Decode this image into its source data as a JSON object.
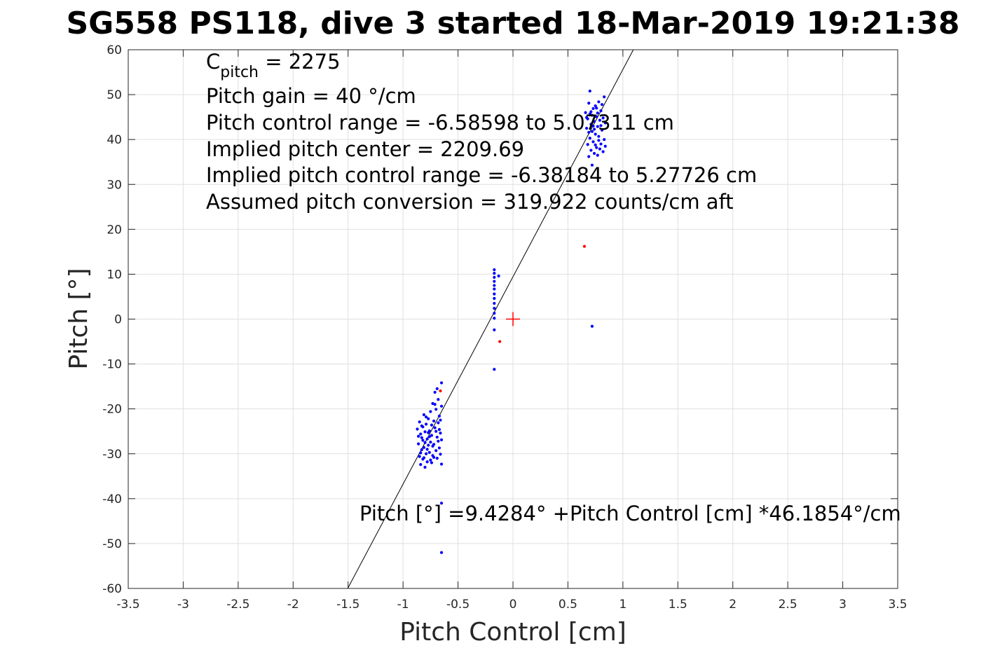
{
  "chart_data": {
    "type": "scatter",
    "title": "SG558 PS118, dive 3 started 18-Mar-2019 19:21:38",
    "xlabel": "Pitch Control [cm]",
    "ylabel": "Pitch [°]",
    "xlim": [
      -3.5,
      3.5
    ],
    "ylim": [
      -60,
      60
    ],
    "grid": true,
    "xticks": [
      -3.5,
      -3,
      -2.5,
      -2,
      -1.5,
      -1,
      -0.5,
      0,
      0.5,
      1,
      1.5,
      2,
      2.5,
      3,
      3.5
    ],
    "yticks": [
      -60,
      -50,
      -40,
      -30,
      -20,
      -10,
      0,
      10,
      20,
      30,
      40,
      50,
      60
    ],
    "xtick_labels": [
      "-3.5",
      "-3",
      "-2.5",
      "-2",
      "-1.5",
      "-1",
      "-0.5",
      "0",
      "0.5",
      "1",
      "1.5",
      "2",
      "2.5",
      "3",
      "3.5"
    ],
    "ytick_labels": [
      "-60",
      "-50",
      "-40",
      "-30",
      "-20",
      "-10",
      "0",
      "10",
      "20",
      "30",
      "40",
      "50",
      "60"
    ],
    "fit_line": {
      "intercept": 9.4284,
      "slope": 46.1854,
      "color": "#000000"
    },
    "center_marker": {
      "x": 0,
      "y": 0,
      "color": "#ff0000"
    },
    "series": [
      {
        "color": "#0000ff",
        "points": [
          [
            -0.87,
            -24.5
          ],
          [
            -0.86,
            -27.8
          ],
          [
            -0.85,
            -30.6
          ],
          [
            -0.85,
            -22.9
          ],
          [
            -0.84,
            -32.4
          ],
          [
            -0.84,
            -25.6
          ],
          [
            -0.83,
            -29.1
          ],
          [
            -0.83,
            -23.8
          ],
          [
            -0.82,
            -31.2
          ],
          [
            -0.82,
            -27.0
          ],
          [
            -0.81,
            -21.3
          ],
          [
            -0.81,
            -28.6
          ],
          [
            -0.8,
            -33.0
          ],
          [
            -0.8,
            -25.1
          ],
          [
            -0.79,
            -30.0
          ],
          [
            -0.79,
            -23.4
          ],
          [
            -0.78,
            -26.7
          ],
          [
            -0.78,
            -31.8
          ],
          [
            -0.77,
            -22.2
          ],
          [
            -0.77,
            -28.1
          ],
          [
            -0.76,
            -24.9
          ],
          [
            -0.76,
            -29.7
          ],
          [
            -0.75,
            -20.6
          ],
          [
            -0.75,
            -27.4
          ],
          [
            -0.74,
            -32.0
          ],
          [
            -0.74,
            -25.9
          ],
          [
            -0.73,
            -18.8
          ],
          [
            -0.73,
            -30.4
          ],
          [
            -0.72,
            -22.7
          ],
          [
            -0.72,
            -27.9
          ],
          [
            -0.71,
            -16.3
          ],
          [
            -0.71,
            -24.2
          ],
          [
            -0.7,
            -29.3
          ],
          [
            -0.7,
            -20.1
          ],
          [
            -0.69,
            -26.3
          ],
          [
            -0.69,
            -31.0
          ],
          [
            -0.68,
            -17.9
          ],
          [
            -0.68,
            -23.1
          ],
          [
            -0.67,
            -28.7
          ],
          [
            -0.67,
            -21.6
          ],
          [
            -0.66,
            -25.4
          ],
          [
            -0.66,
            -30.1
          ],
          [
            -0.65,
            -14.2
          ],
          [
            -0.65,
            -19.4
          ],
          [
            -0.65,
            -26.9
          ],
          [
            -0.65,
            -32.3
          ],
          [
            -0.86,
            -26.1
          ],
          [
            -0.84,
            -29.8
          ],
          [
            -0.82,
            -24.0
          ],
          [
            -0.8,
            -27.5
          ],
          [
            -0.78,
            -29.0
          ],
          [
            -0.76,
            -26.2
          ],
          [
            -0.74,
            -23.6
          ],
          [
            -0.72,
            -30.8
          ],
          [
            -0.7,
            -25.0
          ],
          [
            -0.68,
            -27.2
          ],
          [
            -0.66,
            -22.5
          ],
          [
            -0.79,
            -21.8
          ],
          [
            -0.75,
            -31.4
          ],
          [
            -0.71,
            -19.0
          ],
          [
            -0.69,
            -15.5
          ],
          [
            -0.67,
            -24.6
          ],
          [
            -0.73,
            -28.3
          ],
          [
            -0.77,
            -25.3
          ],
          [
            -0.83,
            -26.4
          ],
          [
            -0.81,
            -30.9
          ],
          [
            -0.65,
            -41.0
          ],
          [
            -0.65,
            -52.0
          ],
          [
            -0.17,
            11.0
          ],
          [
            -0.17,
            10.2
          ],
          [
            -0.17,
            9.3
          ],
          [
            -0.17,
            8.4
          ],
          [
            -0.17,
            7.5
          ],
          [
            -0.17,
            6.7
          ],
          [
            -0.17,
            5.6
          ],
          [
            -0.17,
            4.6
          ],
          [
            -0.17,
            3.5
          ],
          [
            -0.17,
            2.4
          ],
          [
            -0.17,
            1.3
          ],
          [
            -0.17,
            0.2
          ],
          [
            -0.17,
            -2.4
          ],
          [
            -0.17,
            -11.2
          ],
          [
            -0.13,
            9.6
          ],
          [
            0.72,
            -1.6
          ],
          [
            0.66,
            46.0
          ],
          [
            0.67,
            42.5
          ],
          [
            0.68,
            38.9
          ],
          [
            0.68,
            44.6
          ],
          [
            0.69,
            36.2
          ],
          [
            0.69,
            48.1
          ],
          [
            0.7,
            40.3
          ],
          [
            0.7,
            45.7
          ],
          [
            0.71,
            37.6
          ],
          [
            0.71,
            43.4
          ],
          [
            0.72,
            34.3
          ],
          [
            0.72,
            41.8
          ],
          [
            0.73,
            46.9
          ],
          [
            0.73,
            39.5
          ],
          [
            0.74,
            44.0
          ],
          [
            0.74,
            36.9
          ],
          [
            0.75,
            47.5
          ],
          [
            0.75,
            41.2
          ],
          [
            0.76,
            38.2
          ],
          [
            0.76,
            45.1
          ],
          [
            0.77,
            42.9
          ],
          [
            0.77,
            36.5
          ],
          [
            0.78,
            48.4
          ],
          [
            0.78,
            40.7
          ],
          [
            0.79,
            44.3
          ],
          [
            0.79,
            37.9
          ],
          [
            0.8,
            46.4
          ],
          [
            0.8,
            39.0
          ],
          [
            0.81,
            42.1
          ],
          [
            0.81,
            47.8
          ],
          [
            0.82,
            37.3
          ],
          [
            0.82,
            44.8
          ],
          [
            0.83,
            49.5
          ],
          [
            0.83,
            40.0
          ],
          [
            0.84,
            43.7
          ],
          [
            0.84,
            38.5
          ],
          [
            0.7,
            50.8
          ],
          [
            0.72,
            45.4
          ],
          [
            0.74,
            42.3
          ],
          [
            0.76,
            47.0
          ],
          [
            0.78,
            39.8
          ],
          [
            0.8,
            43.1
          ],
          [
            0.67,
            44.9
          ],
          [
            0.69,
            41.6
          ],
          [
            0.71,
            46.2
          ],
          [
            0.73,
            43.0
          ],
          [
            0.75,
            38.8
          ],
          [
            0.77,
            45.9
          ]
        ]
      },
      {
        "color": "#ff0000",
        "points": [
          [
            0.65,
            16.2
          ],
          [
            -0.12,
            -5.0
          ],
          [
            -0.66,
            -16.0
          ]
        ]
      }
    ],
    "annotations": {
      "cpitch_base": "C",
      "cpitch_sub": "pitch",
      "cpitch_value": " = 2275",
      "lines": [
        "Pitch gain = 40 °/cm",
        "Pitch control range = -6.58598 to 5.07311 cm",
        "Implied pitch center = 2209.69",
        "Implied pitch control range = -6.38184 to 5.27726 cm",
        "Assumed pitch conversion = 319.922 counts/cm aft"
      ],
      "fit_text": "Pitch [°] =9.4284° +Pitch Control [cm] *46.1854°/cm"
    }
  }
}
